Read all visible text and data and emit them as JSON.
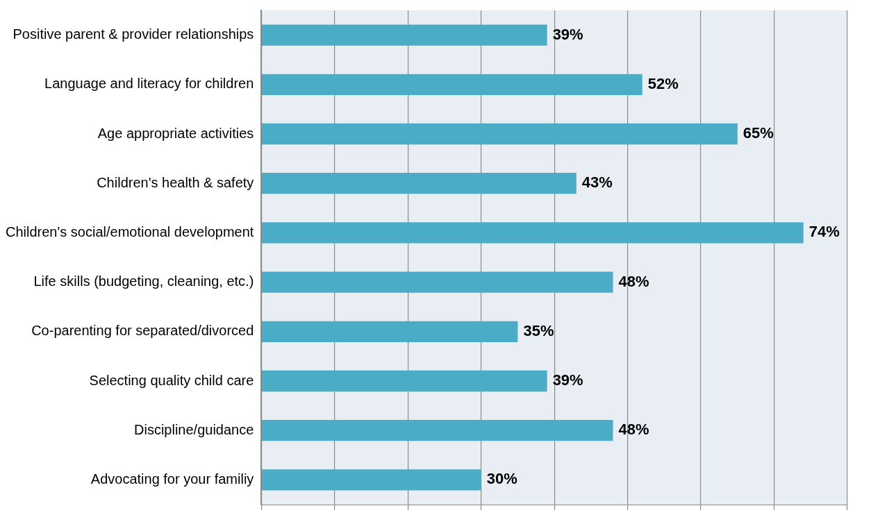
{
  "chart_data": {
    "type": "bar",
    "orientation": "horizontal",
    "categories": [
      "Positive parent & provider relationships",
      "Language and literacy for children",
      "Age appropriate activities",
      "Children's health & safety",
      "Children's social/emotional development",
      "Life skills (budgeting, cleaning, etc.)",
      "Co-parenting for separated/divorced",
      "Selecting quality child care",
      "Discipline/guidance",
      "Advocating for your familiy"
    ],
    "values": [
      39,
      52,
      65,
      43,
      74,
      48,
      35,
      39,
      48,
      30
    ],
    "value_labels": [
      "39%",
      "52%",
      "65%",
      "43%",
      "74%",
      "48%",
      "35%",
      "39%",
      "48%",
      "30%"
    ],
    "color": "#4bacc6",
    "xlim": [
      0,
      80
    ],
    "xticks": [
      {
        "value": 0,
        "label": null
      },
      {
        "value": 10,
        "label": null
      },
      {
        "value": 20,
        "label": null
      },
      {
        "value": 30,
        "label": null
      },
      {
        "value": 40,
        "label": null
      },
      {
        "value": 50,
        "label": null
      },
      {
        "value": 60,
        "label": null
      },
      {
        "value": 70,
        "label": null
      },
      {
        "value": 80,
        "label": null
      }
    ],
    "grid": "x",
    "tick_labels": "y",
    "legend": false
  }
}
